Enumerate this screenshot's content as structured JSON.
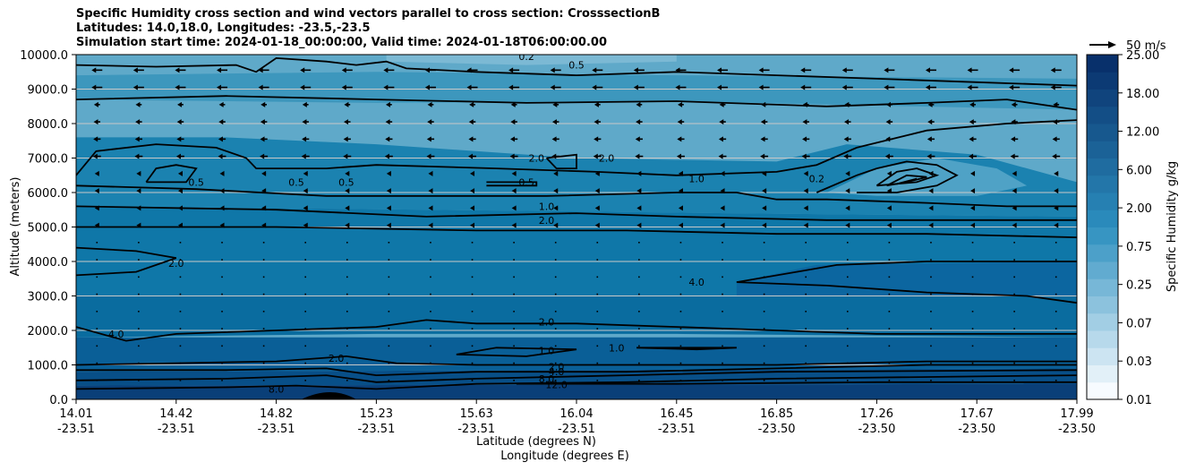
{
  "title_lines": [
    "Specific Humidity cross section and wind vectors parallel to cross section: CrosssectionB",
    "Latitudes: 14.0,18.0, Longitudes: -23.5,-23.5",
    "Simulation start time: 2024-01-18_00:00:00, Valid time: 2024-01-18T06:00:00.00"
  ],
  "colors": {
    "contour_line": "#000000",
    "grid": "#c8c8c8",
    "terrain": "#000000",
    "fill_low": "#ffffff",
    "fill_high": "#08306b"
  },
  "chart_data": {
    "type": "contour_cross_section",
    "ylabel": "Altitude (meters)",
    "xlabel_lines": [
      "Latitude (degrees N)",
      "Longitude (degrees E)"
    ],
    "ylim": [
      0,
      10000
    ],
    "y_ticks": [
      "0.0",
      "1000.0",
      "2000.0",
      "3000.0",
      "4000.0",
      "5000.0",
      "6000.0",
      "7000.0",
      "8000.0",
      "9000.0",
      "10000.0"
    ],
    "x_ticks": [
      {
        "lat": "14.01",
        "lon": "-23.51"
      },
      {
        "lat": "14.42",
        "lon": "-23.51"
      },
      {
        "lat": "14.82",
        "lon": "-23.51"
      },
      {
        "lat": "15.23",
        "lon": "-23.51"
      },
      {
        "lat": "15.63",
        "lon": "-23.51"
      },
      {
        "lat": "16.04",
        "lon": "-23.51"
      },
      {
        "lat": "16.45",
        "lon": "-23.51"
      },
      {
        "lat": "16.85",
        "lon": "-23.50"
      },
      {
        "lat": "17.26",
        "lon": "-23.50"
      },
      {
        "lat": "17.67",
        "lon": "-23.50"
      },
      {
        "lat": "17.99",
        "lon": "-23.50"
      }
    ],
    "colorbar": {
      "label": "Specific Humidity g/kg",
      "ticks": [
        "0.01",
        "0.03",
        "0.07",
        "0.25",
        "0.75",
        "2.00",
        "6.00",
        "12.00",
        "18.00",
        "25.00"
      ],
      "levels": 20
    },
    "quiver_key": "50 m/s",
    "contour_labels": [
      {
        "text": "0.5",
        "x": 0.5,
        "alt": 9700
      },
      {
        "text": "0.2",
        "x": 0.45,
        "alt": 9950
      },
      {
        "text": "2.0",
        "x": 0.46,
        "alt": 7000
      },
      {
        "text": "2.0",
        "x": 0.53,
        "alt": 7000
      },
      {
        "text": "0.5",
        "x": 0.12,
        "alt": 6300
      },
      {
        "text": "0.5",
        "x": 0.22,
        "alt": 6300
      },
      {
        "text": "0.5",
        "x": 0.27,
        "alt": 6300
      },
      {
        "text": "0.5",
        "x": 0.45,
        "alt": 6300
      },
      {
        "text": "1.0",
        "x": 0.62,
        "alt": 6400
      },
      {
        "text": "0.2",
        "x": 0.74,
        "alt": 6400
      },
      {
        "text": "1.0",
        "x": 0.47,
        "alt": 5600
      },
      {
        "text": "2.0",
        "x": 0.47,
        "alt": 5200
      },
      {
        "text": "2.0",
        "x": 0.1,
        "alt": 3950
      },
      {
        "text": "4.0",
        "x": 0.62,
        "alt": 3400
      },
      {
        "text": "4.0",
        "x": 0.04,
        "alt": 1900
      },
      {
        "text": "2.0",
        "x": 0.47,
        "alt": 2250
      },
      {
        "text": "1.0",
        "x": 0.47,
        "alt": 1420
      },
      {
        "text": "1.0",
        "x": 0.54,
        "alt": 1500
      },
      {
        "text": "2.0",
        "x": 0.48,
        "alt": 950
      },
      {
        "text": "4.0",
        "x": 0.48,
        "alt": 800
      },
      {
        "text": "8.0",
        "x": 0.47,
        "alt": 600
      },
      {
        "text": "12.0",
        "x": 0.48,
        "alt": 430
      },
      {
        "text": "8.0",
        "x": 0.2,
        "alt": 300
      },
      {
        "text": "2.0",
        "x": 0.26,
        "alt": 1200
      }
    ]
  }
}
